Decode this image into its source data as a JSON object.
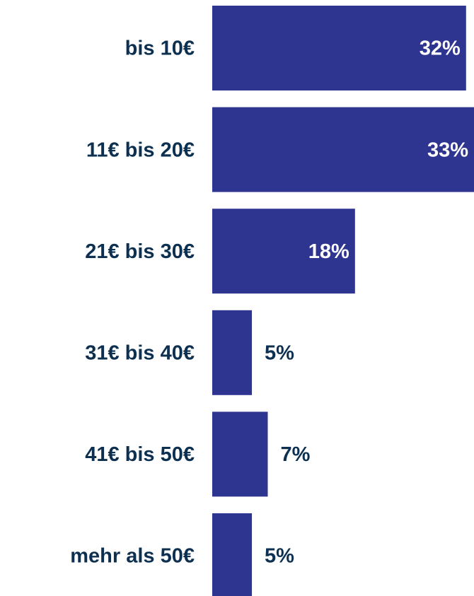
{
  "chart_data": {
    "type": "bar",
    "orientation": "horizontal",
    "categories": [
      "bis 10€",
      "11€ bis 20€",
      "21€ bis 30€",
      "31€ bis 40€",
      "41€ bis 50€",
      "mehr als 50€"
    ],
    "values": [
      32,
      33,
      18,
      5,
      7,
      5
    ],
    "value_labels": [
      "32%",
      "33%",
      "18%",
      "5%",
      "7%",
      "5%"
    ],
    "color": "#2e3590"
  }
}
